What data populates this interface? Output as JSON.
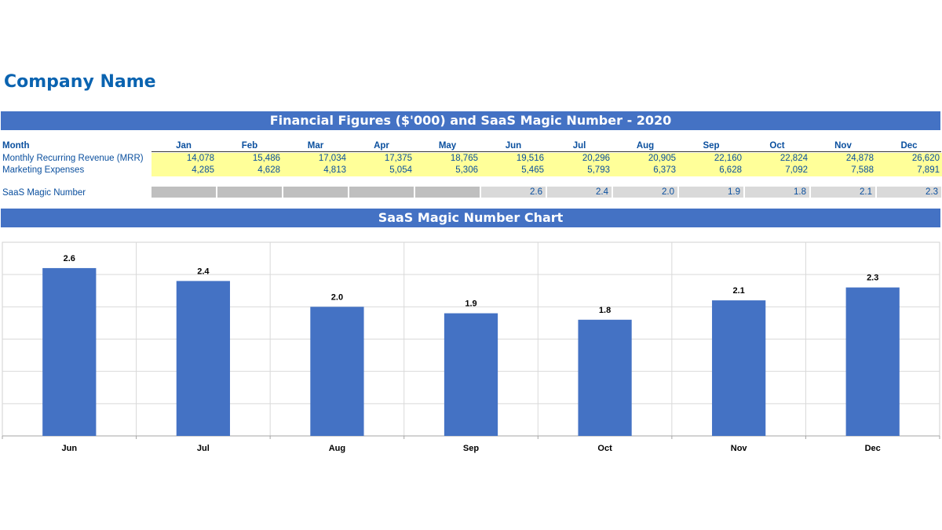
{
  "company_name": "Company Name",
  "table_title": "Financial Figures ($'000) and SaaS Magic Number - 2020",
  "chart_title": "SaaS Magic Number Chart",
  "table": {
    "month_label": "Month",
    "months": [
      "Jan",
      "Feb",
      "Mar",
      "Apr",
      "May",
      "Jun",
      "Jul",
      "Aug",
      "Sep",
      "Oct",
      "Nov",
      "Dec"
    ],
    "rows": [
      {
        "label": "Monthly Recurring Revenue (MRR)",
        "values": [
          "14,078",
          "15,486",
          "17,034",
          "17,375",
          "18,765",
          "19,516",
          "20,296",
          "20,905",
          "22,160",
          "22,824",
          "24,878",
          "26,620"
        ]
      },
      {
        "label": "Marketing Expenses",
        "values": [
          "4,285",
          "4,628",
          "4,813",
          "5,054",
          "5,306",
          "5,465",
          "5,793",
          "6,373",
          "6,628",
          "7,092",
          "7,588",
          "7,891"
        ]
      }
    ],
    "magic_row": {
      "label": "SaaS Magic Number",
      "values": [
        "",
        "",
        "",
        "",
        "",
        "2.6",
        "2.4",
        "2.0",
        "1.9",
        "1.8",
        "2.1",
        "2.3"
      ]
    }
  },
  "colors": {
    "banner": "#4472c4",
    "bar": "#4472c4",
    "highlight": "#ffff99",
    "text": "#0a4f9e"
  },
  "chart_data": {
    "type": "bar",
    "categories": [
      "Jun",
      "Jul",
      "Aug",
      "Sep",
      "Oct",
      "Nov",
      "Dec"
    ],
    "values": [
      2.6,
      2.4,
      2.0,
      1.9,
      1.8,
      2.1,
      2.3
    ],
    "data_labels": [
      "2.6",
      "2.4",
      "2.0",
      "1.9",
      "1.8",
      "2.1",
      "2.3"
    ],
    "ylim": [
      0,
      3
    ],
    "grid": true,
    "legend": "none"
  }
}
